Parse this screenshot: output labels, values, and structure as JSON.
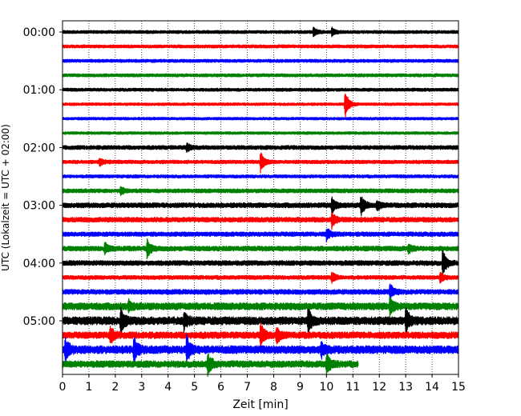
{
  "chart_data": {
    "type": "line",
    "title": "",
    "xlabel": "Zeit  [min]",
    "ylabel": "UTC (Lokalzeit = UTC + 02:00)",
    "xlim": [
      0,
      15
    ],
    "x_ticks": [
      0,
      1,
      2,
      3,
      4,
      5,
      6,
      7,
      8,
      9,
      10,
      11,
      12,
      13,
      14,
      15
    ],
    "y_tick_labels": [
      "00:00",
      "01:00",
      "02:00",
      "03:00",
      "04:00",
      "05:00"
    ],
    "row_duration_min": 15,
    "grid": "vertical dotted",
    "trace_colors": [
      "#000000",
      "#ff0000",
      "#0000ff",
      "#008000"
    ],
    "last_trace_end_min": 11.2,
    "rows": [
      {
        "start": "00:00",
        "color": "#000000",
        "noise": 0.35,
        "events": [
          {
            "t": 9.5,
            "amp": 1.0
          },
          {
            "t": 10.2,
            "amp": 0.8
          }
        ]
      },
      {
        "start": "00:15",
        "color": "#ff0000",
        "noise": 0.35,
        "events": []
      },
      {
        "start": "00:30",
        "color": "#0000ff",
        "noise": 0.35,
        "events": []
      },
      {
        "start": "00:45",
        "color": "#008000",
        "noise": 0.35,
        "events": []
      },
      {
        "start": "01:00",
        "color": "#000000",
        "noise": 0.35,
        "events": []
      },
      {
        "start": "01:15",
        "color": "#ff0000",
        "noise": 0.3,
        "events": [
          {
            "t": 10.7,
            "amp": 3.2
          }
        ]
      },
      {
        "start": "01:30",
        "color": "#0000ff",
        "noise": 0.3,
        "events": []
      },
      {
        "start": "01:45",
        "color": "#008000",
        "noise": 0.3,
        "events": []
      },
      {
        "start": "02:00",
        "color": "#000000",
        "noise": 0.45,
        "events": [
          {
            "t": 4.7,
            "amp": 0.9
          }
        ]
      },
      {
        "start": "02:15",
        "color": "#ff0000",
        "noise": 0.4,
        "events": [
          {
            "t": 7.5,
            "amp": 2.4
          },
          {
            "t": 1.4,
            "amp": 0.8
          }
        ]
      },
      {
        "start": "02:30",
        "color": "#0000ff",
        "noise": 0.35,
        "events": []
      },
      {
        "start": "02:45",
        "color": "#008000",
        "noise": 0.45,
        "events": [
          {
            "t": 2.2,
            "amp": 0.9
          }
        ]
      },
      {
        "start": "03:00",
        "color": "#000000",
        "noise": 0.55,
        "events": [
          {
            "t": 10.2,
            "amp": 1.8
          },
          {
            "t": 11.3,
            "amp": 2.3
          },
          {
            "t": 11.9,
            "amp": 1.0
          }
        ]
      },
      {
        "start": "03:15",
        "color": "#ff0000",
        "noise": 0.55,
        "events": [
          {
            "t": 10.2,
            "amp": 1.8
          }
        ]
      },
      {
        "start": "03:30",
        "color": "#0000ff",
        "noise": 0.5,
        "events": [
          {
            "t": 10.0,
            "amp": 1.4
          }
        ]
      },
      {
        "start": "03:45",
        "color": "#008000",
        "noise": 0.55,
        "events": [
          {
            "t": 3.2,
            "amp": 2.0
          },
          {
            "t": 1.6,
            "amp": 1.2
          },
          {
            "t": 13.1,
            "amp": 1.0
          }
        ]
      },
      {
        "start": "04:00",
        "color": "#000000",
        "noise": 0.55,
        "events": [
          {
            "t": 14.4,
            "amp": 3.0
          }
        ]
      },
      {
        "start": "04:15",
        "color": "#ff0000",
        "noise": 0.45,
        "events": [
          {
            "t": 10.2,
            "amp": 1.2
          },
          {
            "t": 14.3,
            "amp": 1.0
          }
        ]
      },
      {
        "start": "04:30",
        "color": "#0000ff",
        "noise": 0.55,
        "events": [
          {
            "t": 12.4,
            "amp": 1.8
          }
        ]
      },
      {
        "start": "04:45",
        "color": "#008000",
        "noise": 0.8,
        "events": [
          {
            "t": 12.4,
            "amp": 2.0
          },
          {
            "t": 2.5,
            "amp": 1.0
          }
        ]
      },
      {
        "start": "05:00",
        "color": "#000000",
        "noise": 0.9,
        "events": [
          {
            "t": 2.2,
            "amp": 3.0
          },
          {
            "t": 4.6,
            "amp": 1.8
          },
          {
            "t": 9.3,
            "amp": 2.6
          },
          {
            "t": 13.0,
            "amp": 2.8
          }
        ]
      },
      {
        "start": "05:15",
        "color": "#ff0000",
        "noise": 0.75,
        "events": [
          {
            "t": 1.8,
            "amp": 2.0
          },
          {
            "t": 7.5,
            "amp": 2.6
          },
          {
            "t": 8.1,
            "amp": 1.9
          }
        ]
      },
      {
        "start": "05:30",
        "color": "#0000ff",
        "noise": 0.9,
        "events": [
          {
            "t": 0.1,
            "amp": 2.6
          },
          {
            "t": 2.7,
            "amp": 2.6
          },
          {
            "t": 4.7,
            "amp": 2.8
          },
          {
            "t": 9.8,
            "amp": 1.4
          }
        ]
      },
      {
        "start": "05:45",
        "color": "#008000",
        "noise": 0.75,
        "events": [
          {
            "t": 5.5,
            "amp": 2.6
          },
          {
            "t": 10.0,
            "amp": 2.2
          }
        ]
      }
    ]
  }
}
